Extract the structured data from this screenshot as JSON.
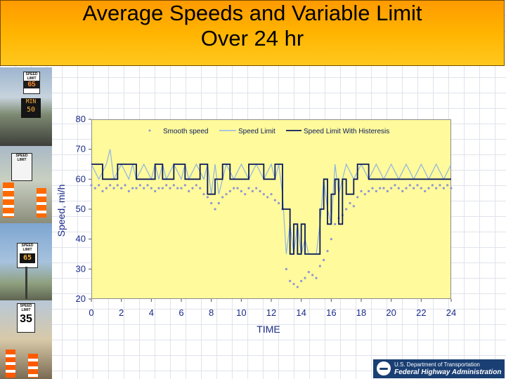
{
  "slide": {
    "title_line1": "Average Speeds and Variable Limit",
    "title_line2": "Over 24 hr"
  },
  "photos": [
    {
      "name": "photo-vsl-gantry",
      "sign_top": "SPEED LIMIT",
      "sign_value": "65",
      "led_top": "MIN",
      "led_value": "50"
    },
    {
      "name": "photo-work-zone-sign",
      "sign_top": "SPEED LIMIT",
      "sign_value": ""
    },
    {
      "name": "photo-led-sign",
      "sign_top": "SPEED LIMIT",
      "sign_value": "65"
    },
    {
      "name": "photo-roadside-sign",
      "sign_top": "SPEED LIMIT",
      "sign_value": "35"
    }
  ],
  "logo": {
    "department": "U.S. Department of Transportation",
    "agency": "Federal Highway Administration"
  },
  "chart_data": {
    "type": "line",
    "title": "",
    "xlabel": "TIME",
    "ylabel": "Speed, mi/h",
    "xlim": [
      0,
      24
    ],
    "ylim": [
      20,
      80
    ],
    "xticks": [
      0,
      2,
      4,
      6,
      8,
      10,
      12,
      14,
      16,
      18,
      20,
      22,
      24
    ],
    "yticks": [
      20,
      30,
      40,
      50,
      60,
      70,
      80
    ],
    "grid": false,
    "legend_position": "top",
    "colors": {
      "smooth": "#8e95d8",
      "speed_limit": "#8fb4e6",
      "hysteresis": "#0a1a5c",
      "plot_bg": "#fffa9b",
      "title_bar": "#ffb400"
    },
    "series": [
      {
        "name": "Smooth speed",
        "style": "dots",
        "x": [
          0.0,
          0.25,
          0.5,
          0.75,
          1.0,
          1.25,
          1.5,
          1.75,
          2.0,
          2.25,
          2.5,
          2.75,
          3.0,
          3.25,
          3.5,
          3.75,
          4.0,
          4.25,
          4.5,
          4.75,
          5.0,
          5.25,
          5.5,
          5.75,
          6.0,
          6.25,
          6.5,
          6.75,
          7.0,
          7.25,
          7.5,
          7.75,
          8.0,
          8.25,
          8.5,
          8.75,
          9.0,
          9.25,
          9.5,
          9.75,
          10.0,
          10.25,
          10.5,
          10.75,
          11.0,
          11.25,
          11.5,
          11.75,
          12.0,
          12.25,
          12.5,
          12.75,
          13.0,
          13.25,
          13.5,
          13.75,
          14.0,
          14.25,
          14.5,
          14.75,
          15.0,
          15.25,
          15.5,
          15.75,
          16.0,
          16.25,
          16.5,
          16.75,
          17.0,
          17.25,
          17.5,
          17.75,
          18.0,
          18.25,
          18.5,
          18.75,
          19.0,
          19.25,
          19.5,
          19.75,
          20.0,
          20.25,
          20.5,
          20.75,
          21.0,
          21.25,
          21.5,
          21.75,
          22.0,
          22.25,
          22.5,
          22.75,
          23.0,
          23.25,
          23.5,
          23.75,
          24.0
        ],
        "y": [
          58,
          57,
          58,
          56,
          57,
          58,
          57,
          58,
          57,
          58,
          56,
          57,
          57,
          58,
          57,
          58,
          57,
          56,
          57,
          57,
          58,
          57,
          58,
          57,
          57,
          58,
          56,
          57,
          58,
          57,
          55,
          54,
          52,
          50,
          52,
          54,
          55,
          56,
          57,
          57,
          56,
          55,
          57,
          56,
          57,
          56,
          55,
          54,
          55,
          53,
          52,
          50,
          30,
          26,
          25,
          24,
          26,
          27,
          29,
          28,
          27,
          31,
          33,
          36,
          40,
          45,
          47,
          48,
          50,
          52,
          51,
          54,
          56,
          55,
          56,
          57,
          56,
          57,
          57,
          56,
          57,
          58,
          57,
          56,
          57,
          58,
          57,
          58,
          57,
          56,
          57,
          58,
          57,
          58,
          57,
          58,
          57
        ]
      },
      {
        "name": "Speed Limit",
        "style": "line",
        "x": [
          0.0,
          0.5,
          1.0,
          1.25,
          1.5,
          2.0,
          2.5,
          2.75,
          3.0,
          3.5,
          4.0,
          4.25,
          4.5,
          4.75,
          5.0,
          5.5,
          6.0,
          6.25,
          6.5,
          7.0,
          7.5,
          7.75,
          8.0,
          8.25,
          8.5,
          8.75,
          9.0,
          9.5,
          10.0,
          10.5,
          11.0,
          11.5,
          12.0,
          12.25,
          12.5,
          12.75,
          13.0,
          13.25,
          13.5,
          13.75,
          14.0,
          14.25,
          14.5,
          15.0,
          15.25,
          15.5,
          15.75,
          16.0,
          16.25,
          16.5,
          16.75,
          17.0,
          17.5,
          18.0,
          18.5,
          19.0,
          19.5,
          20.0,
          20.5,
          21.0,
          21.5,
          22.0,
          22.5,
          23.0,
          23.5,
          24.0
        ],
        "y": [
          65,
          60,
          65,
          70,
          60,
          65,
          60,
          65,
          60,
          65,
          60,
          65,
          60,
          65,
          60,
          65,
          60,
          65,
          60,
          65,
          60,
          65,
          55,
          65,
          55,
          60,
          65,
          60,
          65,
          60,
          65,
          60,
          65,
          60,
          65,
          55,
          35,
          45,
          35,
          45,
          35,
          40,
          35,
          35,
          45,
          60,
          50,
          45,
          65,
          55,
          60,
          65,
          60,
          65,
          60,
          65,
          60,
          65,
          60,
          65,
          60,
          65,
          60,
          65,
          60,
          65
        ]
      },
      {
        "name": "Speed Limit With Histeresis",
        "style": "step",
        "x": [
          0.0,
          0.75,
          1.75,
          3.0,
          4.25,
          4.75,
          5.5,
          6.25,
          7.25,
          7.75,
          8.25,
          8.75,
          9.25,
          10.5,
          11.5,
          12.25,
          12.75,
          13.25,
          13.5,
          13.75,
          14.0,
          14.25,
          15.25,
          15.5,
          15.75,
          16.0,
          16.25,
          16.5,
          16.75,
          17.0,
          17.5,
          17.75,
          18.5,
          19.0,
          19.5,
          20.5,
          21.0,
          21.5,
          22.5,
          23.0,
          24.0
        ],
        "y": [
          65,
          60,
          65,
          60,
          65,
          60,
          65,
          60,
          65,
          55,
          60,
          65,
          60,
          65,
          60,
          65,
          50,
          35,
          45,
          35,
          45,
          35,
          50,
          60,
          45,
          55,
          60,
          45,
          60,
          55,
          60,
          65,
          60,
          60,
          60,
          60,
          60,
          60,
          60,
          60,
          60
        ]
      }
    ]
  }
}
